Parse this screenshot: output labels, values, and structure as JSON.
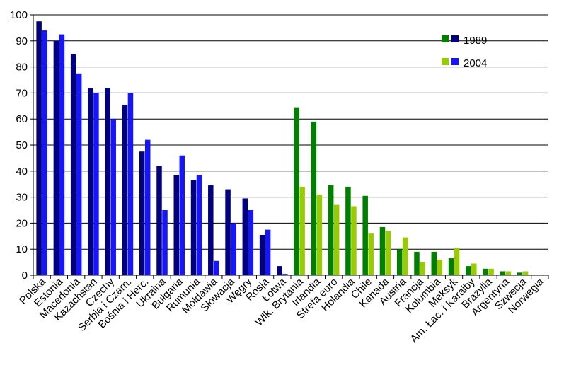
{
  "chart_data": {
    "type": "bar",
    "title": "",
    "xlabel": "",
    "ylabel": "",
    "ylim": [
      0,
      100
    ],
    "yticks": [
      0,
      10,
      20,
      30,
      40,
      50,
      60,
      70,
      80,
      90,
      100
    ],
    "grid": true,
    "legend_position": "top-right",
    "categories": [
      "Polska",
      "Estonia",
      "Macedonia",
      "Kazachstan",
      "Czechy",
      "Serbia i Czarn.",
      "Bośnia i Herc.",
      "Ukraina",
      "Bułgaria",
      "Rumunia",
      "Mołdawia",
      "Słowacja",
      "Węgry",
      "Rosja",
      "Łotwa",
      "Wlk. Brytania",
      "Irlandia",
      "Strefa euro",
      "Holandia",
      "Chile",
      "Kanada",
      "Austria",
      "Francja",
      "Kolumbia",
      "Meksyk",
      "Am. Łac. i Karaiby",
      "Brazylia",
      "Argentyna",
      "Szwecja",
      "Norwegia"
    ],
    "series": [
      {
        "name": "1989",
        "values": [
          97.5,
          90,
          85,
          72,
          72,
          65.5,
          47.5,
          42,
          38.5,
          36.5,
          34.5,
          33,
          29.5,
          15.5,
          3.5,
          64.5,
          59,
          34.5,
          34,
          30.5,
          18.5,
          10,
          9,
          9,
          6.5,
          3.5,
          2.5,
          1.5,
          1,
          null
        ],
        "colors": [
          "#000080",
          "#000080",
          "#000080",
          "#000080",
          "#000080",
          "#000080",
          "#000080",
          "#000080",
          "#000080",
          "#000080",
          "#000080",
          "#000080",
          "#000080",
          "#000080",
          "#000080",
          "#008000",
          "#008000",
          "#008000",
          "#008000",
          "#008000",
          "#008000",
          "#008000",
          "#008000",
          "#008000",
          "#008000",
          "#008000",
          "#008000",
          "#008000",
          "#008000",
          "#008000"
        ]
      },
      {
        "name": "2004",
        "values": [
          94,
          92.5,
          77.5,
          70,
          60,
          70,
          52,
          25,
          46,
          38.5,
          5.5,
          20,
          25,
          17.5,
          0.5,
          34,
          31,
          27,
          26.5,
          16,
          17,
          14.5,
          5,
          6,
          10.5,
          4.5,
          2.5,
          1.5,
          1.5,
          null
        ],
        "colors": [
          "#1515ff",
          "#1515ff",
          "#1515ff",
          "#1515ff",
          "#1515ff",
          "#1515ff",
          "#1515ff",
          "#1515ff",
          "#1515ff",
          "#1515ff",
          "#1515ff",
          "#1515ff",
          "#1515ff",
          "#1515ff",
          "#1515ff",
          "#99cc00",
          "#99cc00",
          "#99cc00",
          "#99cc00",
          "#99cc00",
          "#99cc00",
          "#99cc00",
          "#99cc00",
          "#99cc00",
          "#99cc00",
          "#99cc00",
          "#99cc00",
          "#99cc00",
          "#99cc00",
          "#99cc00"
        ]
      }
    ],
    "legend": [
      {
        "label": "1989",
        "swatches": [
          "#008000",
          "#000080"
        ]
      },
      {
        "label": "2004",
        "swatches": [
          "#99cc00",
          "#1515ff"
        ]
      }
    ]
  }
}
